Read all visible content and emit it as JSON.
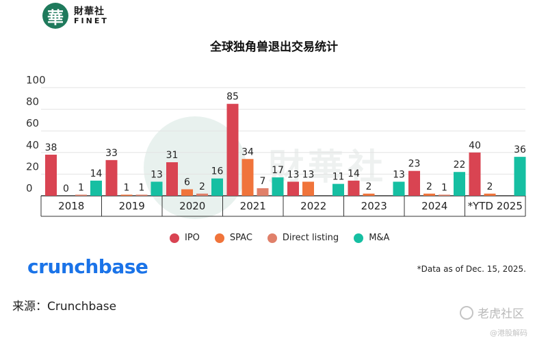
{
  "header": {
    "logo_glyph": "華",
    "logo_cn": "財華社",
    "logo_en": "FINET"
  },
  "watermark": {
    "text": "財華社"
  },
  "chart_data": {
    "type": "bar",
    "title": "全球独角兽退出交易统计",
    "categories": [
      "2018",
      "2019",
      "2020",
      "2021",
      "2022",
      "2023",
      "2024",
      "*YTD 2025"
    ],
    "series": [
      {
        "name": "IPO",
        "color": "#d94452",
        "values": [
          38,
          33,
          31,
          85,
          13,
          14,
          23,
          40
        ]
      },
      {
        "name": "SPAC",
        "color": "#f0743b",
        "values": [
          0,
          1,
          6,
          34,
          13,
          2,
          2,
          2
        ]
      },
      {
        "name": "Direct listing",
        "color": "#e0806a",
        "values": [
          1,
          1,
          2,
          7,
          null,
          null,
          1,
          null
        ]
      },
      {
        "name": "M&A",
        "color": "#16bfa2",
        "values": [
          14,
          13,
          16,
          17,
          11,
          13,
          22,
          36
        ]
      }
    ],
    "yticks": [
      "100",
      "80",
      "60",
      "40",
      "20",
      "0"
    ],
    "ylim": [
      0,
      100
    ],
    "xlabel": "",
    "ylabel": "",
    "grid": true,
    "legend_position": "bottom"
  },
  "brand": "crunchbase",
  "note": "*Data as of Dec. 15, 2025.",
  "source": "来源：Crunchbase",
  "footer": {
    "tiger_label": "老虎社区",
    "tiger_sub": "@港股解码"
  }
}
